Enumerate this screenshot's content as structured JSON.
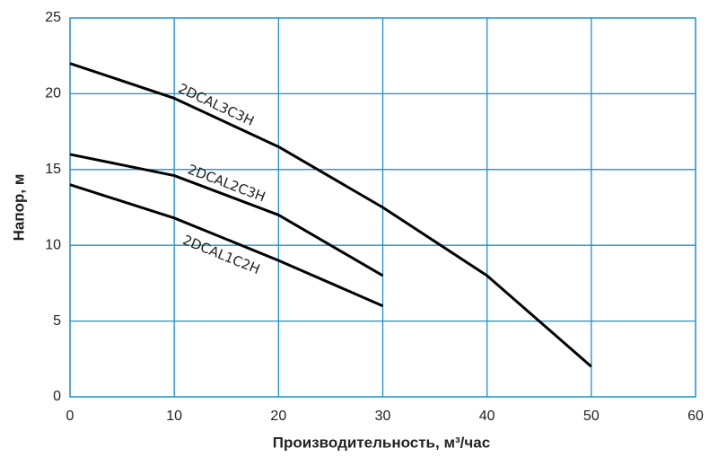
{
  "chart_data": {
    "type": "line",
    "xlabel": "Производительность, м³/час",
    "ylabel": "Напор, м",
    "x": [
      0,
      10,
      20,
      30,
      40,
      50
    ],
    "series": [
      {
        "name": "2DCAL3C3H",
        "color": "#000000",
        "values": [
          22,
          19.7,
          16.5,
          12.5,
          8,
          2
        ]
      },
      {
        "name": "2DCAL2C3H",
        "color": "#000000",
        "values": [
          16,
          14.6,
          12,
          8,
          null,
          null
        ]
      },
      {
        "name": "2DCAL1C2H",
        "color": "#000000",
        "values": [
          14,
          11.8,
          9,
          6,
          null,
          null
        ]
      }
    ],
    "xlim": [
      0,
      60
    ],
    "xticks": [
      0,
      10,
      20,
      30,
      40,
      50,
      60
    ],
    "ylim": [
      0,
      25
    ],
    "yticks": [
      0,
      5,
      10,
      15,
      20,
      25
    ],
    "grid": true,
    "grid_color": "#1f8fc8"
  }
}
